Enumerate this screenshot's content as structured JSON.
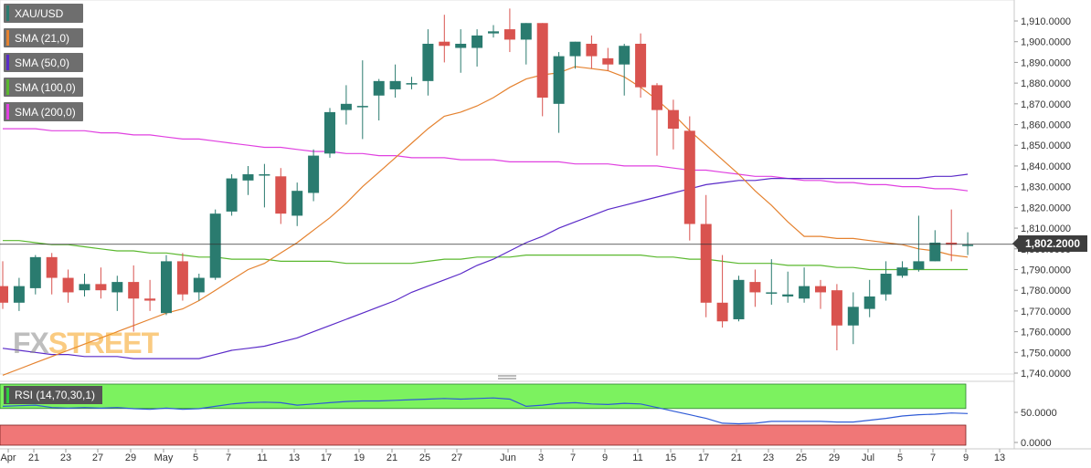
{
  "legend": {
    "items": [
      {
        "label": "XAU/USD",
        "color": "#2a7b6f"
      },
      {
        "label": "SMA (21,0)",
        "color": "#e5822f"
      },
      {
        "label": "SMA (50,0)",
        "color": "#5a2ac8"
      },
      {
        "label": "SMA (100,0)",
        "color": "#5ab82e"
      },
      {
        "label": "SMA (200,0)",
        "color": "#e040e0"
      }
    ]
  },
  "rsi_label": "RSI (14,70,30,1)",
  "current_price": "1,802.2000",
  "watermark": {
    "fx": "FX",
    "street": "STREET"
  },
  "chart_data": {
    "type": "candlestick",
    "symbol": "XAU/USD",
    "price_axis": {
      "ylim": [
        1738,
        1918
      ],
      "ticks": [
        "1,740.0000",
        "1,750.0000",
        "1,760.0000",
        "1,770.0000",
        "1,780.0000",
        "1,790.0000",
        "1,800.0000",
        "1,810.0000",
        "1,820.0000",
        "1,830.0000",
        "1,840.0000",
        "1,850.0000",
        "1,860.0000",
        "1,870.0000",
        "1,880.0000",
        "1,890.0000",
        "1,900.0000",
        "1,910.0000"
      ]
    },
    "x_axis": {
      "labels": [
        "Apr",
        "21",
        "23",
        "27",
        "29",
        "May",
        "5",
        "7",
        "11",
        "13",
        "17",
        "19",
        "21",
        "25",
        "27",
        "Jun",
        "3",
        "7",
        "9",
        "11",
        "15",
        "17",
        "21",
        "23",
        "25",
        "29",
        "Jul",
        "5",
        "7",
        "9",
        "13"
      ]
    },
    "current_price": 1802.2,
    "candles": [
      {
        "o": 1782,
        "h": 1794,
        "l": 1771,
        "c": 1774
      },
      {
        "o": 1774,
        "h": 1786,
        "l": 1770,
        "c": 1782
      },
      {
        "o": 1781,
        "h": 1797,
        "l": 1778,
        "c": 1796
      },
      {
        "o": 1796,
        "h": 1798,
        "l": 1778,
        "c": 1786
      },
      {
        "o": 1786,
        "h": 1790,
        "l": 1774,
        "c": 1779
      },
      {
        "o": 1780,
        "h": 1788,
        "l": 1777,
        "c": 1783
      },
      {
        "o": 1783,
        "h": 1791,
        "l": 1776,
        "c": 1780
      },
      {
        "o": 1779,
        "h": 1787,
        "l": 1770,
        "c": 1784
      },
      {
        "o": 1784,
        "h": 1792,
        "l": 1760,
        "c": 1776
      },
      {
        "o": 1776,
        "h": 1785,
        "l": 1770,
        "c": 1775
      },
      {
        "o": 1769,
        "h": 1797,
        "l": 1768,
        "c": 1794
      },
      {
        "o": 1794,
        "h": 1798,
        "l": 1775,
        "c": 1778
      },
      {
        "o": 1779,
        "h": 1788,
        "l": 1775,
        "c": 1786
      },
      {
        "o": 1786,
        "h": 1819,
        "l": 1785,
        "c": 1817
      },
      {
        "o": 1818,
        "h": 1836,
        "l": 1816,
        "c": 1834
      },
      {
        "o": 1833,
        "h": 1840,
        "l": 1826,
        "c": 1836
      },
      {
        "o": 1836,
        "h": 1841,
        "l": 1820,
        "c": 1836
      },
      {
        "o": 1835,
        "h": 1839,
        "l": 1812,
        "c": 1817
      },
      {
        "o": 1816,
        "h": 1832,
        "l": 1811,
        "c": 1828
      },
      {
        "o": 1827,
        "h": 1848,
        "l": 1823,
        "c": 1845
      },
      {
        "o": 1846,
        "h": 1868,
        "l": 1844,
        "c": 1866
      },
      {
        "o": 1867,
        "h": 1879,
        "l": 1860,
        "c": 1870
      },
      {
        "o": 1869,
        "h": 1891,
        "l": 1853,
        "c": 1869
      },
      {
        "o": 1874,
        "h": 1882,
        "l": 1862,
        "c": 1881
      },
      {
        "o": 1877,
        "h": 1889,
        "l": 1873,
        "c": 1881
      },
      {
        "o": 1880,
        "h": 1883,
        "l": 1877,
        "c": 1880
      },
      {
        "o": 1881,
        "h": 1906,
        "l": 1874,
        "c": 1899
      },
      {
        "o": 1900,
        "h": 1913,
        "l": 1890,
        "c": 1898
      },
      {
        "o": 1897,
        "h": 1906,
        "l": 1885,
        "c": 1899
      },
      {
        "o": 1897,
        "h": 1906,
        "l": 1888,
        "c": 1903
      },
      {
        "o": 1904,
        "h": 1908,
        "l": 1902,
        "c": 1905
      },
      {
        "o": 1906,
        "h": 1916,
        "l": 1895,
        "c": 1901
      },
      {
        "o": 1901,
        "h": 1909,
        "l": 1889,
        "c": 1909
      },
      {
        "o": 1909,
        "h": 1909,
        "l": 1864,
        "c": 1873
      },
      {
        "o": 1870,
        "h": 1895,
        "l": 1856,
        "c": 1893
      },
      {
        "o": 1893,
        "h": 1900,
        "l": 1887,
        "c": 1900
      },
      {
        "o": 1899,
        "h": 1903,
        "l": 1887,
        "c": 1893
      },
      {
        "o": 1892,
        "h": 1897,
        "l": 1886,
        "c": 1889
      },
      {
        "o": 1889,
        "h": 1899,
        "l": 1874,
        "c": 1898
      },
      {
        "o": 1899,
        "h": 1904,
        "l": 1873,
        "c": 1878
      },
      {
        "o": 1879,
        "h": 1880,
        "l": 1845,
        "c": 1867
      },
      {
        "o": 1867,
        "h": 1872,
        "l": 1848,
        "c": 1858
      },
      {
        "o": 1857,
        "h": 1864,
        "l": 1804,
        "c": 1812
      },
      {
        "o": 1812,
        "h": 1826,
        "l": 1767,
        "c": 1774
      },
      {
        "o": 1774,
        "h": 1797,
        "l": 1762,
        "c": 1765
      },
      {
        "o": 1766,
        "h": 1787,
        "l": 1765,
        "c": 1785
      },
      {
        "o": 1784,
        "h": 1790,
        "l": 1772,
        "c": 1779
      },
      {
        "o": 1779,
        "h": 1795,
        "l": 1773,
        "c": 1779
      },
      {
        "o": 1777,
        "h": 1789,
        "l": 1774,
        "c": 1778
      },
      {
        "o": 1776,
        "h": 1791,
        "l": 1774,
        "c": 1782
      },
      {
        "o": 1782,
        "h": 1785,
        "l": 1771,
        "c": 1779
      },
      {
        "o": 1780,
        "h": 1783,
        "l": 1751,
        "c": 1763
      },
      {
        "o": 1763,
        "h": 1779,
        "l": 1754,
        "c": 1772
      },
      {
        "o": 1771,
        "h": 1785,
        "l": 1767,
        "c": 1777
      },
      {
        "o": 1778,
        "h": 1794,
        "l": 1775,
        "c": 1788
      },
      {
        "o": 1787,
        "h": 1794,
        "l": 1786,
        "c": 1791
      },
      {
        "o": 1790,
        "h": 1816,
        "l": 1789,
        "c": 1794
      },
      {
        "o": 1794,
        "h": 1809,
        "l": 1794,
        "c": 1803
      },
      {
        "o": 1803,
        "h": 1819,
        "l": 1794,
        "c": 1802
      },
      {
        "o": 1802,
        "h": 1808,
        "l": 1797,
        "c": 1802
      }
    ],
    "sma21": [
      1739,
      1742,
      1745,
      1748,
      1751,
      1754,
      1757,
      1760,
      1763,
      1766,
      1769,
      1771,
      1775,
      1780,
      1785,
      1790,
      1793,
      1798,
      1803,
      1809,
      1815,
      1822,
      1830,
      1837,
      1844,
      1851,
      1858,
      1864,
      1866,
      1869,
      1873,
      1878,
      1882,
      1884,
      1885,
      1888,
      1887,
      1886,
      1883,
      1878,
      1872,
      1865,
      1857,
      1850,
      1843,
      1836,
      1828,
      1821,
      1813,
      1806,
      1806,
      1805,
      1805,
      1804,
      1803,
      1802,
      1800,
      1799,
      1797,
      1796
    ],
    "sma50": [
      1752,
      1751,
      1750,
      1749,
      1749,
      1748,
      1748,
      1748,
      1747,
      1747,
      1747,
      1747,
      1747,
      1749,
      1751,
      1752,
      1753,
      1755,
      1757,
      1760,
      1763,
      1766,
      1769,
      1772,
      1775,
      1779,
      1782,
      1785,
      1788,
      1792,
      1795,
      1799,
      1803,
      1806,
      1810,
      1813,
      1816,
      1819,
      1821,
      1823,
      1825,
      1827,
      1829,
      1831,
      1832,
      1833,
      1833,
      1834,
      1834,
      1834,
      1834,
      1834,
      1834,
      1834,
      1834,
      1834,
      1834,
      1835,
      1835,
      1836
    ],
    "sma100": [
      1804,
      1804,
      1803,
      1802,
      1802,
      1801,
      1800,
      1799,
      1799,
      1798,
      1798,
      1797,
      1796,
      1796,
      1795,
      1795,
      1795,
      1794,
      1794,
      1794,
      1794,
      1793,
      1793,
      1793,
      1793,
      1793,
      1794,
      1795,
      1795,
      1796,
      1796,
      1796,
      1797,
      1797,
      1797,
      1797,
      1797,
      1797,
      1797,
      1797,
      1796,
      1796,
      1795,
      1795,
      1794,
      1793,
      1793,
      1793,
      1792,
      1792,
      1792,
      1791,
      1791,
      1790,
      1790,
      1790,
      1790,
      1790,
      1790,
      1790
    ],
    "sma200": [
      1858,
      1858,
      1858,
      1857,
      1857,
      1857,
      1856,
      1856,
      1855,
      1855,
      1854,
      1853,
      1853,
      1852,
      1851,
      1850,
      1849,
      1849,
      1848,
      1847,
      1847,
      1846,
      1846,
      1845,
      1845,
      1844,
      1844,
      1844,
      1843,
      1843,
      1843,
      1842,
      1842,
      1842,
      1842,
      1841,
      1841,
      1841,
      1840,
      1840,
      1840,
      1839,
      1838,
      1838,
      1837,
      1836,
      1835,
      1835,
      1834,
      1833,
      1833,
      1832,
      1832,
      1831,
      1831,
      1830,
      1830,
      1829,
      1829,
      1828
    ],
    "rsi": {
      "ylim": [
        0,
        100
      ],
      "overbought": 70,
      "oversold": 30,
      "ticks": [
        "50.0000",
        "0.0000"
      ],
      "values": [
        60,
        61,
        62,
        58,
        57,
        58,
        57,
        58,
        56,
        55,
        57,
        55,
        56,
        60,
        64,
        66,
        67,
        66,
        62,
        64,
        66,
        68,
        69,
        69,
        70,
        71,
        72,
        73,
        72,
        73,
        74,
        72,
        60,
        62,
        65,
        66,
        64,
        63,
        65,
        64,
        58,
        52,
        46,
        40,
        32,
        31,
        32,
        35,
        35,
        35,
        35,
        34,
        34,
        37,
        40,
        44,
        46,
        47,
        49,
        48
      ]
    }
  }
}
